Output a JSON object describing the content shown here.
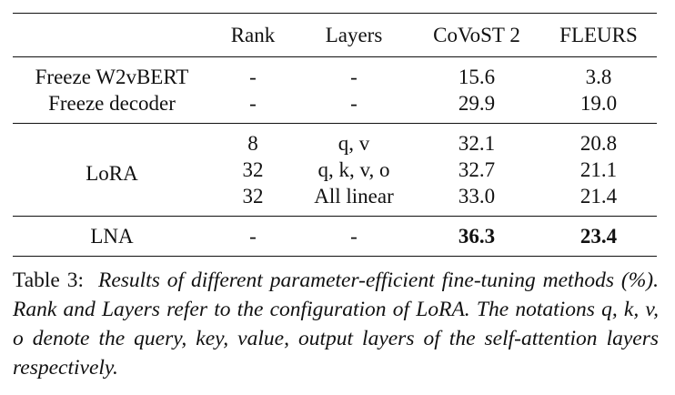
{
  "table": {
    "header": [
      "Rank",
      "Layers",
      "CoVoST 2",
      "FLEURS"
    ],
    "sections": [
      {
        "rows": [
          {
            "label": "Freeze W2vBERT",
            "cells": [
              "-",
              "-",
              "15.6",
              "3.8"
            ]
          },
          {
            "label": "Freeze decoder",
            "cells": [
              "-",
              "-",
              "29.9",
              "19.0"
            ]
          }
        ]
      },
      {
        "label": "LoRA",
        "rows": [
          {
            "cells": [
              "8",
              "q, v",
              "32.1",
              "20.8"
            ]
          },
          {
            "cells": [
              "32",
              "q, k, v, o",
              "32.7",
              "21.1"
            ]
          },
          {
            "cells": [
              "32",
              "All linear",
              "33.0",
              "21.4"
            ]
          }
        ]
      },
      {
        "rows": [
          {
            "label": "LNA",
            "cells": [
              "-",
              "-",
              "36.3",
              "23.4"
            ],
            "bold_from": 2
          }
        ]
      }
    ]
  },
  "caption": {
    "label": "Table 3:",
    "text": "Results of different parameter-efficient fine-tuning methods (%). Rank and Layers refer to the configuration of LoRA. The notations q, k, v, o denote the query, key, value, output layers of the self-attention layers respectively."
  }
}
